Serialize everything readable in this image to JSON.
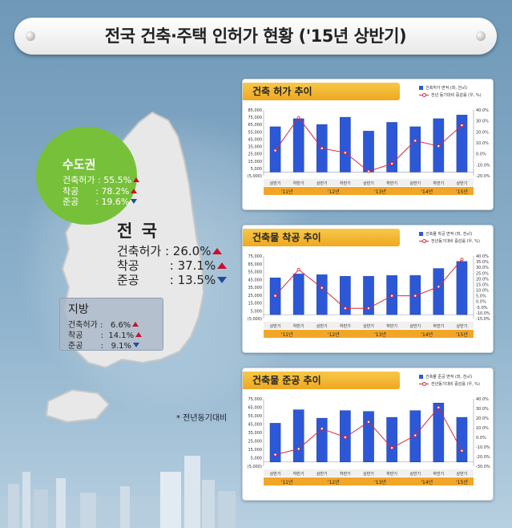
{
  "title": "전국 건축·주택 인허가 현황 ('15년 상반기)",
  "metro": {
    "name": "수도권",
    "stats": [
      {
        "label": "건축허가",
        "value": "55.5%",
        "dir": "up"
      },
      {
        "label": "착공",
        "value": "78.2%",
        "dir": "up"
      },
      {
        "label": "준공",
        "value": "19.6%",
        "dir": "down"
      }
    ]
  },
  "nation": {
    "name": "전 국",
    "stats": [
      {
        "label": "건축허가",
        "value": "26.0%",
        "dir": "up"
      },
      {
        "label": "착공",
        "value": "37.1%",
        "dir": "up"
      },
      {
        "label": "준공",
        "value": "13.5%",
        "dir": "down"
      }
    ]
  },
  "local": {
    "name": "지방",
    "stats": [
      {
        "label": "건축허가",
        "value": "6.6%",
        "dir": "up"
      },
      {
        "label": "착공",
        "value": "14.1%",
        "dir": "up"
      },
      {
        "label": "준공",
        "value": "9.1%",
        "dir": "down"
      }
    ]
  },
  "note": "* 전년동기대비",
  "chart_data": [
    {
      "type": "bar",
      "title": "건축 허가 추이",
      "legend": [
        "건축허가 면적 (좌, 천㎡)",
        "전년 동기대비 증감률 (우, %)"
      ],
      "categories": [
        "상반기",
        "하반기",
        "상반기",
        "하반기",
        "상반기",
        "하반기",
        "상반기",
        "하반기",
        "상반기"
      ],
      "years": [
        "'11년",
        "'12년",
        "'13년",
        "'14년",
        "'15년"
      ],
      "y_left_ticks": [
        "85,000",
        "75,000",
        "65,000",
        "55,000",
        "45,000",
        "35,000",
        "25,000",
        "15,000",
        "5,000",
        "(5,000)"
      ],
      "y_right_ticks": [
        "40.0%",
        "30.0%",
        "20.0%",
        "10.0%",
        "0.0%",
        "-10.0%",
        "-20.0%"
      ],
      "ylim_left": [
        -5000,
        85000
      ],
      "ylim_right": [
        -20,
        40
      ],
      "series": [
        {
          "name": "건축허가 면적 (좌, 천㎡)",
          "kind": "bar",
          "values": [
            62000,
            73000,
            65000,
            75000,
            56000,
            68000,
            62000,
            73000,
            78000
          ]
        },
        {
          "name": "전년 동기대비 증감률 (우, %)",
          "kind": "line",
          "values": [
            3,
            33,
            5,
            1,
            -16,
            -9,
            12,
            7,
            26
          ]
        }
      ]
    },
    {
      "type": "bar",
      "title": "건축물 착공 추이",
      "legend": [
        "건축물 착공 면적 (좌, 천㎡)",
        "전년동기대비 증감률 (우, %)"
      ],
      "categories": [
        "상반기",
        "하반기",
        "상반기",
        "하반기",
        "상반기",
        "하반기",
        "상반기",
        "하반기",
        "상반기"
      ],
      "years": [
        "'11년",
        "'12년",
        "'13년",
        "'14년",
        "'15년"
      ],
      "y_left_ticks": [
        "75,000",
        "65,000",
        "55,000",
        "45,000",
        "35,000",
        "25,000",
        "15,000",
        "5,000",
        "(5,000)"
      ],
      "y_right_ticks": [
        "40.0%",
        "35.0%",
        "30.0%",
        "25.0%",
        "20.0%",
        "15.0%",
        "10.0%",
        "5.0%",
        "0.0%",
        "-5.0%",
        "-10.0%",
        "-15.0%"
      ],
      "ylim_left": [
        -5000,
        75000
      ],
      "ylim_right": [
        -15,
        40
      ],
      "series": [
        {
          "name": "건축물 착공 면적 (좌, 천㎡)",
          "kind": "bar",
          "values": [
            47000,
            52000,
            51000,
            49000,
            49000,
            50000,
            50000,
            59000,
            68000
          ]
        },
        {
          "name": "전년동기대비 증감률 (우, %)",
          "kind": "line",
          "values": [
            5,
            28,
            12,
            -6,
            -6,
            5,
            5,
            13,
            37
          ]
        }
      ]
    },
    {
      "type": "bar",
      "title": "건축물 준공 추이",
      "legend": [
        "건축물 준공 면적 (좌, 천㎡)",
        "전년동기대비 증감률 (우, %)"
      ],
      "categories": [
        "상반기",
        "하반기",
        "상반기",
        "하반기",
        "상반기",
        "하반기",
        "상반기",
        "하반기",
        "상반기"
      ],
      "years": [
        "'11년",
        "'12년",
        "'13년",
        "'14년",
        "'15년"
      ],
      "y_left_ticks": [
        "75,000",
        "65,000",
        "55,000",
        "45,000",
        "35,000",
        "25,000",
        "15,000",
        "5,000",
        "(5,000)"
      ],
      "y_right_ticks": [
        "40.0%",
        "30.0%",
        "20.0%",
        "10.0%",
        "0.0%",
        "-10.0%",
        "-20.0%",
        "-30.0%"
      ],
      "ylim_left": [
        -5000,
        75000
      ],
      "ylim_right": [
        -30,
        40
      ],
      "series": [
        {
          "name": "건축물 준공 면적 (좌, 천㎡)",
          "kind": "bar",
          "values": [
            46000,
            62000,
            52000,
            61000,
            60000,
            53000,
            61000,
            70000,
            53000
          ]
        },
        {
          "name": "전년동기대비 증감률 (우, %)",
          "kind": "line",
          "values": [
            -18,
            -12,
            9,
            0,
            16,
            -11,
            2,
            31,
            -14
          ]
        }
      ]
    }
  ]
}
